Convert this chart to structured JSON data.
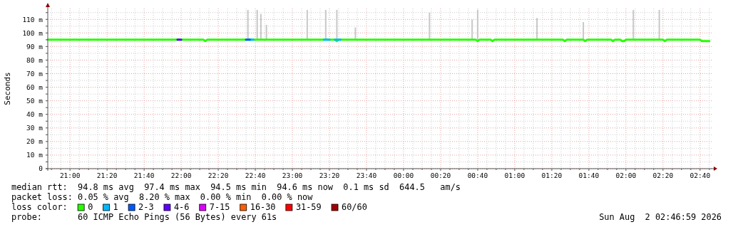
{
  "chart_data": {
    "type": "line",
    "ylabel": "Seconds",
    "legend_title": "loss color:",
    "legend": "bottom",
    "grid": true,
    "annotations": [
      "median rtt:  94.8 ms avg  97.4 ms max  94.5 ms min  94.6 ms now  0.1 ms sd  644.5   am/s",
      "packet loss: 0.05 % avg  8.20 % max  0.00 % min  0.00 % now",
      "probe:       60 ICMP Echo Pings (56 Bytes) every 61s",
      "Sun Aug  2 02:46:59 2026"
    ],
    "xlim": [
      "2026-08-01T20:48",
      "2026-08-02T02:47"
    ],
    "ylim": [
      0,
      118
    ],
    "yticks": [
      {
        "value": 0,
        "label": "0"
      },
      {
        "value": 5,
        "label": null
      },
      {
        "value": 10,
        "label": "10 m"
      },
      {
        "value": 15,
        "label": null
      },
      {
        "value": 20,
        "label": "20 m"
      },
      {
        "value": 25,
        "label": null
      },
      {
        "value": 30,
        "label": "30 m"
      },
      {
        "value": 35,
        "label": null
      },
      {
        "value": 40,
        "label": "40 m"
      },
      {
        "value": 45,
        "label": null
      },
      {
        "value": 50,
        "label": "50 m"
      },
      {
        "value": 55,
        "label": null
      },
      {
        "value": 60,
        "label": "60 m"
      },
      {
        "value": 65,
        "label": null
      },
      {
        "value": 70,
        "label": "70 m"
      },
      {
        "value": 75,
        "label": null
      },
      {
        "value": 80,
        "label": "80 m"
      },
      {
        "value": 85,
        "label": null
      },
      {
        "value": 90,
        "label": "90 m"
      },
      {
        "value": 95,
        "label": null
      },
      {
        "value": 100,
        "label": "100 m"
      },
      {
        "value": 105,
        "label": null
      },
      {
        "value": 110,
        "label": "110 m"
      },
      {
        "value": 115,
        "label": null
      }
    ],
    "xticks": [
      {
        "value": "2026-08-01T20:50",
        "label": null
      },
      {
        "value": "2026-08-01T20:55",
        "label": null
      },
      {
        "value": "2026-08-01T21:00",
        "label": "21:00"
      },
      {
        "value": "2026-08-01T21:05",
        "label": null
      },
      {
        "value": "2026-08-01T21:10",
        "label": null
      },
      {
        "value": "2026-08-01T21:15",
        "label": null
      },
      {
        "value": "2026-08-01T21:20",
        "label": "21:20"
      },
      {
        "value": "2026-08-01T21:25",
        "label": null
      },
      {
        "value": "2026-08-01T21:30",
        "label": null
      },
      {
        "value": "2026-08-01T21:35",
        "label": null
      },
      {
        "value": "2026-08-01T21:40",
        "label": "21:40"
      },
      {
        "value": "2026-08-01T21:45",
        "label": null
      },
      {
        "value": "2026-08-01T21:50",
        "label": null
      },
      {
        "value": "2026-08-01T21:55",
        "label": null
      },
      {
        "value": "2026-08-01T22:00",
        "label": "22:00"
      },
      {
        "value": "2026-08-01T22:05",
        "label": null
      },
      {
        "value": "2026-08-01T22:10",
        "label": null
      },
      {
        "value": "2026-08-01T22:15",
        "label": null
      },
      {
        "value": "2026-08-01T22:20",
        "label": "22:20"
      },
      {
        "value": "2026-08-01T22:25",
        "label": null
      },
      {
        "value": "2026-08-01T22:30",
        "label": null
      },
      {
        "value": "2026-08-01T22:35",
        "label": null
      },
      {
        "value": "2026-08-01T22:40",
        "label": "22:40"
      },
      {
        "value": "2026-08-01T22:45",
        "label": null
      },
      {
        "value": "2026-08-01T22:50",
        "label": null
      },
      {
        "value": "2026-08-01T22:55",
        "label": null
      },
      {
        "value": "2026-08-01T23:00",
        "label": "23:00"
      },
      {
        "value": "2026-08-01T23:05",
        "label": null
      },
      {
        "value": "2026-08-01T23:10",
        "label": null
      },
      {
        "value": "2026-08-01T23:15",
        "label": null
      },
      {
        "value": "2026-08-01T23:20",
        "label": "23:20"
      },
      {
        "value": "2026-08-01T23:25",
        "label": null
      },
      {
        "value": "2026-08-01T23:30",
        "label": null
      },
      {
        "value": "2026-08-01T23:35",
        "label": null
      },
      {
        "value": "2026-08-01T23:40",
        "label": "23:40"
      },
      {
        "value": "2026-08-01T23:45",
        "label": null
      },
      {
        "value": "2026-08-01T23:50",
        "label": null
      },
      {
        "value": "2026-08-01T23:55",
        "label": null
      },
      {
        "value": "2026-08-02T00:00",
        "label": "00:00"
      },
      {
        "value": "2026-08-02T00:05",
        "label": null
      },
      {
        "value": "2026-08-02T00:10",
        "label": null
      },
      {
        "value": "2026-08-02T00:15",
        "label": null
      },
      {
        "value": "2026-08-02T00:20",
        "label": "00:20"
      },
      {
        "value": "2026-08-02T00:25",
        "label": null
      },
      {
        "value": "2026-08-02T00:30",
        "label": null
      },
      {
        "value": "2026-08-02T00:35",
        "label": null
      },
      {
        "value": "2026-08-02T00:40",
        "label": "00:40"
      },
      {
        "value": "2026-08-02T00:45",
        "label": null
      },
      {
        "value": "2026-08-02T00:50",
        "label": null
      },
      {
        "value": "2026-08-02T00:55",
        "label": null
      },
      {
        "value": "2026-08-02T01:00",
        "label": "01:00"
      },
      {
        "value": "2026-08-02T01:05",
        "label": null
      },
      {
        "value": "2026-08-02T01:10",
        "label": null
      },
      {
        "value": "2026-08-02T01:15",
        "label": null
      },
      {
        "value": "2026-08-02T01:20",
        "label": "01:20"
      },
      {
        "value": "2026-08-02T01:25",
        "label": null
      },
      {
        "value": "2026-08-02T01:30",
        "label": null
      },
      {
        "value": "2026-08-02T01:35",
        "label": null
      },
      {
        "value": "2026-08-02T01:40",
        "label": "01:40"
      },
      {
        "value": "2026-08-02T01:45",
        "label": null
      },
      {
        "value": "2026-08-02T01:50",
        "label": null
      },
      {
        "value": "2026-08-02T01:55",
        "label": null
      },
      {
        "value": "2026-08-02T02:00",
        "label": "02:00"
      },
      {
        "value": "2026-08-02T02:05",
        "label": null
      },
      {
        "value": "2026-08-02T02:10",
        "label": null
      },
      {
        "value": "2026-08-02T02:15",
        "label": null
      },
      {
        "value": "2026-08-02T02:20",
        "label": "02:20"
      },
      {
        "value": "2026-08-02T02:25",
        "label": null
      },
      {
        "value": "2026-08-02T02:30",
        "label": null
      },
      {
        "value": "2026-08-02T02:35",
        "label": null
      },
      {
        "value": "2026-08-02T02:40",
        "label": "02:40"
      },
      {
        "value": "2026-08-02T02:45",
        "label": null
      }
    ],
    "series": [
      {
        "type": "bar",
        "color": "#c8c8c8",
        "x": [
          "2026-08-01T22:36",
          "2026-08-01T22:41",
          "2026-08-01T22:43",
          "2026-08-01T22:46",
          "2026-08-01T23:08",
          "2026-08-01T23:18",
          "2026-08-01T23:24",
          "2026-08-01T23:34",
          "2026-08-02T00:14",
          "2026-08-02T00:37",
          "2026-08-02T00:40",
          "2026-08-02T01:12",
          "2026-08-02T01:37",
          "2026-08-02T02:04",
          "2026-08-02T02:18"
        ],
        "base": [
          95,
          95,
          95,
          95,
          95,
          95,
          95,
          95,
          95,
          95,
          95,
          95,
          95,
          95,
          95
        ],
        "values": [
          22,
          22,
          19,
          11,
          22,
          22,
          22,
          9,
          20,
          15,
          22,
          16,
          13,
          22,
          22
        ]
      },
      {
        "name": "0",
        "color": "#26ff00",
        "x": [
          "2026-08-01T20:48",
          "2026-08-01T21:20",
          "2026-08-01T21:50",
          "2026-08-01T22:12",
          "2026-08-01T22:13",
          "2026-08-01T22:14",
          "2026-08-01T22:40",
          "2026-08-01T23:00",
          "2026-08-01T23:23",
          "2026-08-01T23:24",
          "2026-08-01T23:25",
          "2026-08-02T00:00",
          "2026-08-02T00:39",
          "2026-08-02T00:40",
          "2026-08-02T00:41",
          "2026-08-02T00:47",
          "2026-08-02T00:48",
          "2026-08-02T00:49",
          "2026-08-02T01:26",
          "2026-08-02T01:27",
          "2026-08-02T01:28",
          "2026-08-02T01:37",
          "2026-08-02T01:38",
          "2026-08-02T01:39",
          "2026-08-02T01:52",
          "2026-08-02T01:53",
          "2026-08-02T01:54",
          "2026-08-02T01:57",
          "2026-08-02T01:58",
          "2026-08-02T01:59",
          "2026-08-02T02:00",
          "2026-08-02T02:20",
          "2026-08-02T02:21",
          "2026-08-02T02:22",
          "2026-08-02T02:40",
          "2026-08-02T02:41",
          "2026-08-02T02:45"
        ],
        "values": [
          95,
          95,
          95,
          95,
          94,
          95,
          95,
          95,
          95,
          94,
          95,
          95,
          95,
          94,
          95,
          95,
          94,
          95,
          95,
          94,
          95,
          95,
          94,
          95,
          95,
          94,
          95,
          95,
          94,
          94,
          95,
          95,
          94,
          95,
          95,
          94,
          94
        ]
      },
      {
        "name": "1",
        "color": "#00b8ff",
        "x": [
          "2026-08-01T22:37",
          "2026-08-01T22:39",
          "2026-08-01T22:50",
          "2026-08-01T23:17",
          "2026-08-01T23:20",
          "2026-08-01T23:22",
          "2026-08-01T23:23",
          "2026-08-01T23:26"
        ],
        "values": [
          95,
          95,
          null,
          95,
          95,
          null,
          95,
          95
        ]
      },
      {
        "name": "2-3",
        "color": "#0059ff",
        "x": [
          "2026-08-01T22:35",
          "2026-08-01T22:37"
        ],
        "values": [
          95,
          95
        ]
      },
      {
        "name": "4-6",
        "color": "#5e00ff",
        "x": [
          "2026-08-01T21:58",
          "2026-08-01T22:00"
        ],
        "values": [
          95,
          95
        ]
      },
      {
        "name": "7-15",
        "color": "#dd00ff"
      },
      {
        "name": "16-30",
        "color": "#ff5e00"
      },
      {
        "name": "31-59",
        "color": "#ff0000"
      },
      {
        "name": "60/60",
        "color": "#a10000"
      }
    ]
  }
}
